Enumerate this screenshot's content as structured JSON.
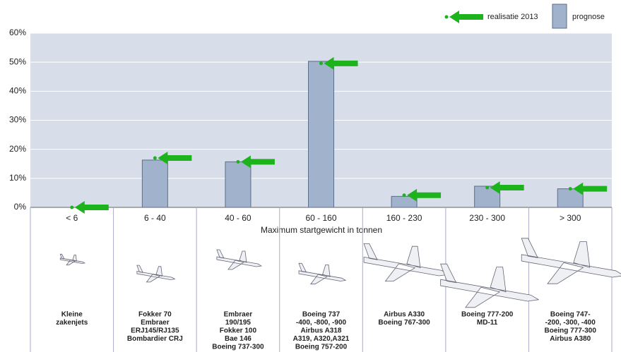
{
  "chart_data": {
    "type": "bar",
    "x_label": "Maximum startgewicht in tonnen",
    "categories": [
      "< 6",
      "6 - 40",
      "40 - 60",
      "60 - 160",
      "160 - 230",
      "230 - 300",
      "> 300"
    ],
    "series": [
      {
        "name": "realisatie 2013",
        "color": "#1db31d",
        "marker": "arrow",
        "values": [
          0,
          17.0,
          15.7,
          49.6,
          4.2,
          6.8,
          6.4
        ]
      },
      {
        "name": "prognose",
        "color": "#a0b2cc",
        "values": [
          0,
          16.3,
          15.7,
          50.3,
          3.8,
          7.3,
          6.4
        ]
      }
    ],
    "ylim": [
      0,
      60
    ],
    "yticks": [
      {
        "value": 0,
        "label": "0%"
      },
      {
        "value": 10,
        "label": "10%"
      },
      {
        "value": 20,
        "label": "20%"
      },
      {
        "value": 30,
        "label": "30%"
      },
      {
        "value": 40,
        "label": "40%"
      },
      {
        "value": 50,
        "label": "50%"
      },
      {
        "value": 60,
        "label": "60%"
      }
    ],
    "grid": true,
    "legend": "top-right",
    "aircraft": [
      [
        "Kleine",
        "zakenjets"
      ],
      [
        "Fokker 70",
        "Embraer",
        "ERJ145/RJ135",
        "Bombardier CRJ"
      ],
      [
        "Embraer",
        "190/195",
        "Fokker 100",
        "Bae 146",
        "Boeing 737-300"
      ],
      [
        "Boeing 737",
        "-400, -800, -900",
        "Airbus A318",
        "A319, A320,A321",
        "Boeing 757-200"
      ],
      [
        "Airbus A330",
        "Boeing 767-300"
      ],
      [
        "Boeing 777-200",
        "MD-11"
      ],
      [
        "Boeing 747-",
        "-200, -300, -400",
        "Boeing 777-300",
        "Airbus A380"
      ]
    ]
  }
}
